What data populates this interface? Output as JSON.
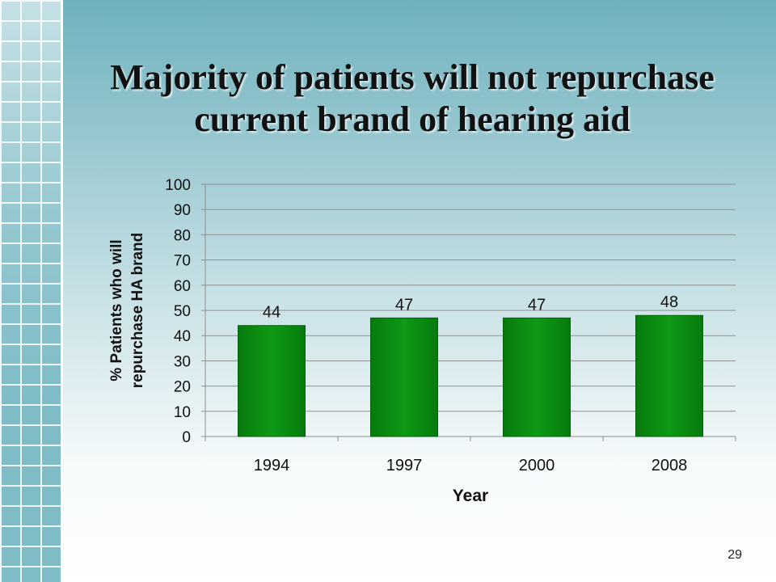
{
  "slide": {
    "title_line1": "Majority of patients will not repurchase",
    "title_line2": "current brand of hearing aid",
    "page_number": "29"
  },
  "chart_data": {
    "type": "bar",
    "categories": [
      "1994",
      "1997",
      "2000",
      "2008"
    ],
    "values": [
      44,
      47,
      47,
      48
    ],
    "title": "",
    "xlabel": "Year",
    "ylabel_line1": "% Patients who will",
    "ylabel_line2": "repurchase HA brand",
    "ylim": [
      0,
      100
    ],
    "yticks": [
      0,
      10,
      20,
      30,
      40,
      50,
      60,
      70,
      80,
      90,
      100
    ],
    "grid": true,
    "legend": "none",
    "data_labels": true,
    "bar_color": "#0b8a13"
  }
}
